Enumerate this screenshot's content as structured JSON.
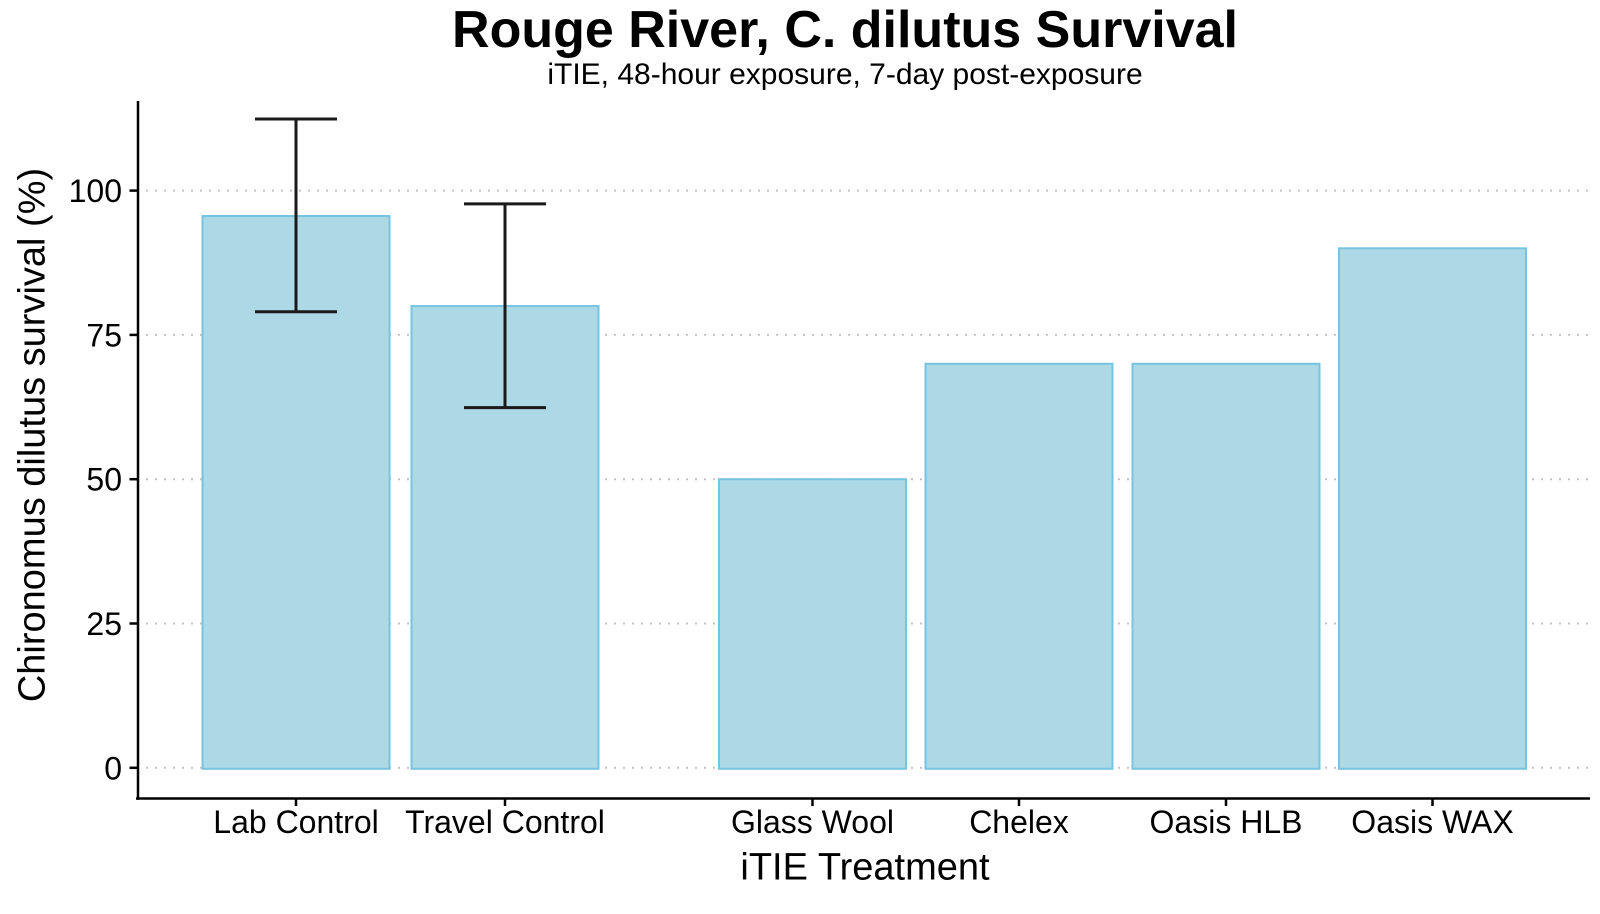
{
  "chart_data": {
    "type": "bar",
    "title": "Rouge River, C. dilutus Survival",
    "subtitle": "iTIE, 48-hour exposure, 7-day post-exposure",
    "xlabel": "iTIE Treatment",
    "ylabel": "Chironomus dilutus survival (%)",
    "categories": [
      "Lab Control",
      "Travel Control",
      "Glass Wool",
      "Chelex",
      "Oasis HLB",
      "Oasis WAX"
    ],
    "values": [
      95.6,
      80,
      50,
      70,
      70,
      90
    ],
    "error_bars": [
      {
        "low": 79,
        "high": 112.4
      },
      {
        "low": 62.4,
        "high": 97.7
      },
      null,
      null,
      null,
      null
    ],
    "yticks": [
      0,
      25,
      50,
      75,
      100
    ],
    "ylim": [
      0,
      115
    ],
    "grid": "horizontal dotted lines at y ticks",
    "legend": "none",
    "group_gap_after_category": "Travel Control",
    "bar_fill": "#ADD8E6",
    "bar_stroke": "#76C4E2",
    "error_bar_color": "#1a1a1a",
    "grid_color": "#c4c4c4",
    "axis_color": "#000000"
  }
}
